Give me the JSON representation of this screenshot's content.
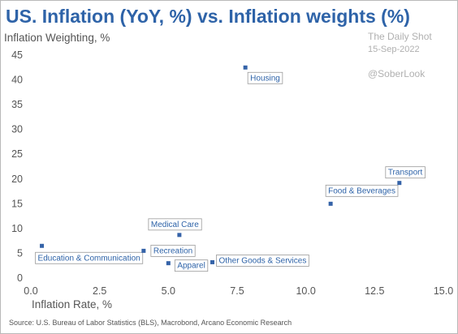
{
  "watermark": {
    "line1": "The Daily Shot",
    "line2": "15-Sep-2022",
    "handle": "@SoberLook"
  },
  "source": "Source: U.S. Bureau of Labor Statistics (BLS), Macrobond, Arcano Economic Research",
  "chart_data": {
    "type": "scatter",
    "title": "US. Inflation (YoY, %) vs. Inflation weights (%)",
    "xlabel": "Inflation Rate, %",
    "ylabel": "Inflation Weighting, %",
    "xlim": [
      0,
      15
    ],
    "ylim": [
      0,
      45
    ],
    "xticks": [
      0,
      2.5,
      5,
      7.5,
      10,
      12.5,
      15
    ],
    "xtick_labels": [
      "0.0",
      "2.5",
      "5.0",
      "7.5",
      "10.0",
      "12.5",
      "15.0"
    ],
    "yticks": [
      0,
      5,
      10,
      15,
      20,
      25,
      30,
      35,
      40,
      45
    ],
    "ytick_labels": [
      "0",
      "5",
      "10",
      "15",
      "20",
      "25",
      "30",
      "35",
      "40",
      "45"
    ],
    "grid": false,
    "marker_color": "#3563a8",
    "label_color": "#2e63a8",
    "points": [
      {
        "label": "Education & Communication",
        "x": 0.4,
        "y": 6.5
      },
      {
        "label": "Recreation",
        "x": 4.1,
        "y": 5.5
      },
      {
        "label": "Apparel",
        "x": 5.0,
        "y": 3.0
      },
      {
        "label": "Medical Care",
        "x": 5.4,
        "y": 8.7
      },
      {
        "label": "Other Goods & Services",
        "x": 6.6,
        "y": 3.2
      },
      {
        "label": "Housing",
        "x": 7.8,
        "y": 42.5
      },
      {
        "label": "Food & Beverages",
        "x": 10.9,
        "y": 15.0
      },
      {
        "label": "Transport",
        "x": 13.4,
        "y": 19.2
      }
    ]
  }
}
